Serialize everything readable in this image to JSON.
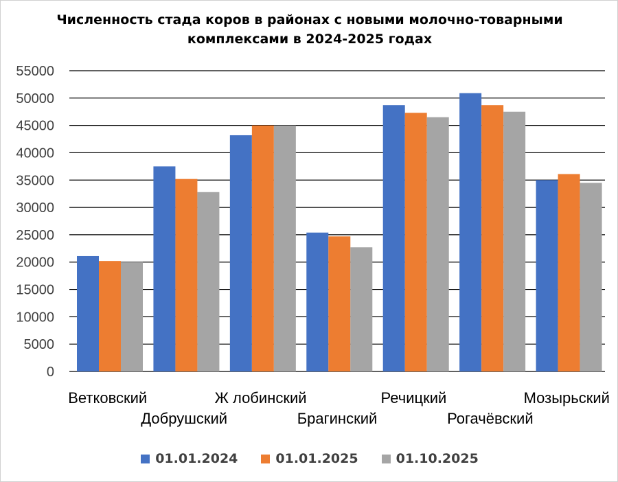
{
  "chart_data": {
    "type": "bar",
    "title": "Численность стада коров в районах с новыми молочно-товарными комплексами в 2024-2025 годах",
    "categories": [
      "Ветковский",
      "Добрушский",
      "Ж лобинский",
      "Брагинский",
      "Речицкий",
      "Рогачёвский",
      "Мозырьский"
    ],
    "series": [
      {
        "name": "01.01.2024",
        "color": "#4472C4",
        "values": [
          21100,
          37500,
          43200,
          25400,
          48700,
          50900,
          35000
        ]
      },
      {
        "name": "01.01.2025",
        "color": "#ED7D31",
        "values": [
          20200,
          35200,
          45000,
          24700,
          47300,
          48700,
          36100
        ]
      },
      {
        "name": "01.10.2025",
        "color": "#A5A5A5",
        "values": [
          20000,
          32800,
          45000,
          22700,
          46500,
          47500,
          34500
        ]
      }
    ],
    "yticks": [
      "0",
      "5000",
      "10000",
      "15000",
      "20000",
      "25000",
      "30000",
      "35000",
      "40000",
      "45000",
      "50000",
      "55000"
    ],
    "ylim": [
      0,
      55000
    ],
    "xlabel": "",
    "ylabel": "",
    "grid": true,
    "legend_position": "bottom"
  }
}
